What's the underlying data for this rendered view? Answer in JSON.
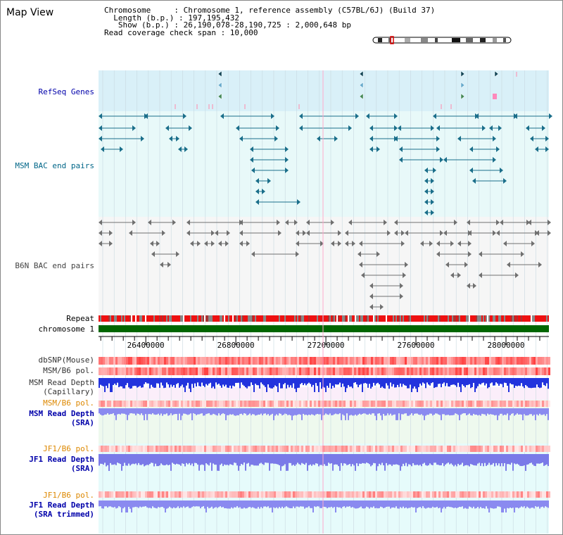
{
  "header": {
    "title": "Map View",
    "info_lines": [
      "Chromosome     : Chromosome 1, reference assembly (C57BL/6J) (Build 37)",
      "  Length (b.p.) : 197,195,432",
      "   Show (b.p.) : 26,190,078-28,190,725 : 2,000,648 bp",
      "Read coverage check span : 10,000"
    ]
  },
  "tracks": {
    "refseq": "RefSeq Genes",
    "msm_bac": "MSM BAC end pairs",
    "b6n_bac": "B6N BAC end pairs",
    "repeat": "Repeat",
    "chromosome": "chromosome 1",
    "dbsnp": "dbSNP(Mouse)",
    "msm_b6_pol": "MSM/B6 pol.",
    "msm_depth_cap_1": "MSM Read Depth",
    "msm_depth_cap_2": "(Capillary)",
    "msm_b6_pol_sra": "MSM/B6 pol.",
    "msm_depth_sra_1": "MSM Read Depth",
    "msm_depth_sra_2": "(SRA)",
    "jf1_b6_pol": "JF1/B6 pol.",
    "jf1_depth_sra_1": "JF1 Read Depth",
    "jf1_depth_sra_2": "(SRA)",
    "jf1_b6_pol_trim": "JF1/B6 pol.",
    "jf1_depth_trim_1": "JF1 Read Depth",
    "jf1_depth_trim_2": "(SRA trimmed)"
  },
  "axis": {
    "ticks": [
      "26400000",
      "26800000",
      "27200000",
      "27600000",
      "28000000"
    ],
    "tick_values": [
      26400000,
      26800000,
      27200000,
      27600000,
      28000000
    ],
    "range": [
      26190078,
      28190725
    ]
  },
  "colors": {
    "refseq_bg": "#d9f0f8",
    "msm_bg": "#e8f9f9",
    "b6n_bg": "#f5f5f5",
    "chromosome": "#006600",
    "repeat_red": "#ee1111",
    "repeat_gray": "#888888",
    "label_blue": "#0000aa",
    "label_orange": "#dd8800",
    "label_teal": "#006688"
  }
}
